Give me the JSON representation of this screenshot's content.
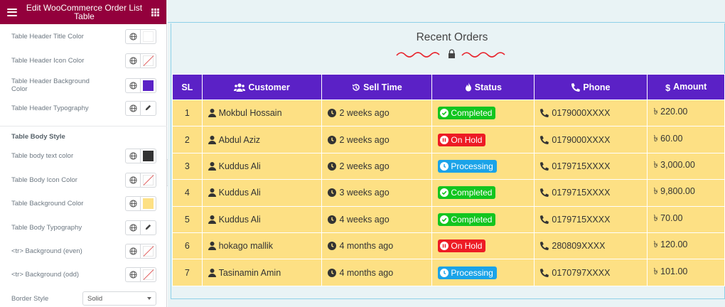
{
  "panel": {
    "title": "Edit WooCommerce Order List Table",
    "header_controls": [
      {
        "label": "Table Header Title Color",
        "swatch": "#ffffff"
      },
      {
        "label": "Table Header Icon Color",
        "swatch": "none"
      },
      {
        "label": "Table Header Background Color",
        "swatch": "#5b21c6"
      },
      {
        "label": "Table Header Typography",
        "swatch": "edit"
      }
    ],
    "body_section_title": "Table Body Style",
    "body_controls": [
      {
        "label": "Table body text color",
        "swatch": "#333333"
      },
      {
        "label": "Table Body Icon Color",
        "swatch": "none"
      },
      {
        "label": "Table Background Color",
        "swatch": "#fde084"
      },
      {
        "label": "Table Body Typography",
        "swatch": "edit"
      },
      {
        "label": "<tr> Background (even)",
        "swatch": "none"
      },
      {
        "label": "<tr> Background (odd)",
        "swatch": "none"
      }
    ],
    "border_style": {
      "label": "Border Style",
      "value": "Solid"
    }
  },
  "preview": {
    "heading": "Recent Orders",
    "columns": [
      {
        "label": "SL",
        "icon": ""
      },
      {
        "label": "Customer",
        "icon": "users-icon"
      },
      {
        "label": "Sell Time",
        "icon": "history-icon"
      },
      {
        "label": "Status",
        "icon": "fire-icon"
      },
      {
        "label": "Phone",
        "icon": "phone-icon"
      },
      {
        "label": "Amount",
        "icon": "dollar-icon"
      }
    ],
    "rows": [
      {
        "sl": "1",
        "customer": "Mokbul Hossain",
        "time": "2 weeks ago",
        "status": "Completed",
        "phone": "0179000XXXX",
        "amount": "৳ 220.00"
      },
      {
        "sl": "2",
        "customer": "Abdul Aziz",
        "time": "2 weeks ago",
        "status": "On Hold",
        "phone": "0179000XXXX",
        "amount": "৳ 60.00"
      },
      {
        "sl": "3",
        "customer": "Kuddus Ali",
        "time": "2 weeks ago",
        "status": "Processing",
        "phone": "0179715XXXX",
        "amount": "৳ 3,000.00"
      },
      {
        "sl": "4",
        "customer": "Kuddus Ali",
        "time": "3 weeks ago",
        "status": "Completed",
        "phone": "0179715XXXX",
        "amount": "৳ 9,800.00"
      },
      {
        "sl": "5",
        "customer": "Kuddus Ali",
        "time": "4 weeks ago",
        "status": "Completed",
        "phone": "0179715XXXX",
        "amount": "৳ 70.00"
      },
      {
        "sl": "6",
        "customer": "hokago mallik",
        "time": "4 months ago",
        "status": "On Hold",
        "phone": "280809XXXX",
        "amount": "৳ 120.00"
      },
      {
        "sl": "7",
        "customer": "Tasinamin Amin",
        "time": "4 months ago",
        "status": "Processing",
        "phone": "0170797XXXX",
        "amount": "৳ 101.00"
      }
    ],
    "status_colors": {
      "Completed": "#12c51f",
      "On Hold": "#ed1b24",
      "Processing": "#1aa3e8"
    }
  }
}
